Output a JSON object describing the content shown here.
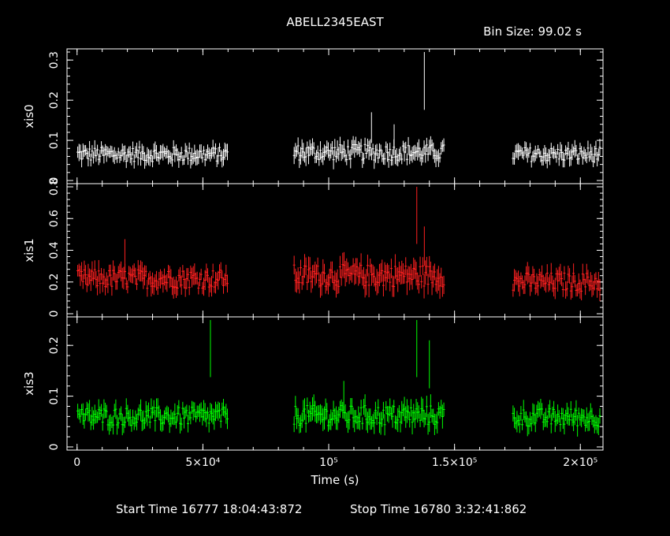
{
  "title": "ABELL2345EAST",
  "bin_size": "Bin Size: 99.02 s",
  "footer": {
    "start": "Start Time 16777 18:04:43:872",
    "stop": "Stop Time 16780  3:32:41:862"
  },
  "colors": {
    "background": "#000000",
    "xis0": "#ffffff",
    "xis1": "#ff2020",
    "xis3": "#00ff00"
  },
  "chart_data": {
    "type": "scatter",
    "xlabel": "Time (s)",
    "xlim": [
      -4000,
      209000
    ],
    "x_ticks": [
      {
        "value": 0,
        "label": "0"
      },
      {
        "value": 50000,
        "label": "5×10⁴"
      },
      {
        "value": 100000,
        "label": "10⁵"
      },
      {
        "value": 150000,
        "label": "1.5×10⁵"
      },
      {
        "value": 200000,
        "label": "2×10⁵"
      }
    ],
    "panels": [
      {
        "name": "xis0",
        "ylabel": "xis0",
        "color": "#ffffff",
        "ylim": [
          0,
          0.32
        ],
        "y_ticks": [
          {
            "value": 0,
            "label": "0"
          },
          {
            "value": 0.1,
            "label": "0.1"
          },
          {
            "value": 0.2,
            "label": "0.2"
          },
          {
            "value": 0.3,
            "label": "0.3"
          }
        ],
        "segments": [
          {
            "x_start": 0,
            "x_end": 60000,
            "mean": 0.065,
            "spread": 0.018
          },
          {
            "x_start": 86000,
            "x_end": 146000,
            "mean": 0.07,
            "spread": 0.02
          },
          {
            "x_start": 173000,
            "x_end": 208000,
            "mean": 0.065,
            "spread": 0.018
          }
        ],
        "spikes": [
          {
            "x": 117000,
            "y": 0.17
          },
          {
            "x": 126000,
            "y": 0.14
          },
          {
            "x": 138000,
            "y": 0.32
          }
        ]
      },
      {
        "name": "xis1",
        "ylabel": "xis1",
        "color": "#ff2020",
        "ylim": [
          0,
          0.8
        ],
        "y_ticks": [
          {
            "value": 0,
            "label": "0"
          },
          {
            "value": 0.2,
            "label": "0.2"
          },
          {
            "value": 0.4,
            "label": "0.4"
          },
          {
            "value": 0.6,
            "label": "0.6"
          },
          {
            "value": 0.8,
            "label": "0.8"
          }
        ],
        "segments": [
          {
            "x_start": 0,
            "x_end": 60000,
            "mean": 0.22,
            "spread": 0.06
          },
          {
            "x_start": 86000,
            "x_end": 146000,
            "mean": 0.24,
            "spread": 0.07
          },
          {
            "x_start": 173000,
            "x_end": 208000,
            "mean": 0.2,
            "spread": 0.06
          }
        ],
        "spikes": [
          {
            "x": 19000,
            "y": 0.47
          },
          {
            "x": 135000,
            "y": 0.8
          },
          {
            "x": 138000,
            "y": 0.55
          }
        ]
      },
      {
        "name": "xis3",
        "ylabel": "xis3",
        "color": "#00ff00",
        "ylim": [
          0,
          0.25
        ],
        "y_ticks": [
          {
            "value": 0,
            "label": "0"
          },
          {
            "value": 0.1,
            "label": "0.1"
          },
          {
            "value": 0.2,
            "label": "0.2"
          }
        ],
        "segments": [
          {
            "x_start": 0,
            "x_end": 60000,
            "mean": 0.06,
            "spread": 0.018
          },
          {
            "x_start": 86000,
            "x_end": 146000,
            "mean": 0.062,
            "spread": 0.02
          },
          {
            "x_start": 173000,
            "x_end": 208000,
            "mean": 0.058,
            "spread": 0.018
          }
        ],
        "spikes": [
          {
            "x": 53000,
            "y": 0.25
          },
          {
            "x": 135000,
            "y": 0.25
          },
          {
            "x": 140000,
            "y": 0.21
          },
          {
            "x": 106000,
            "y": 0.13
          }
        ]
      }
    ]
  }
}
